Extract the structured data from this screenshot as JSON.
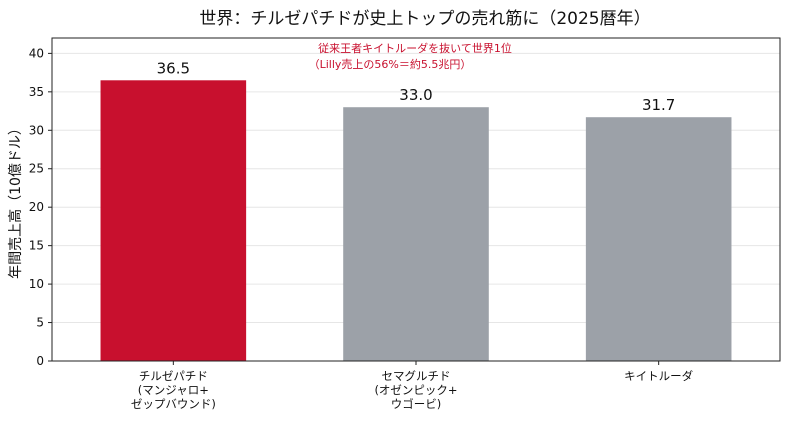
{
  "chart_data": {
    "type": "bar",
    "title": "世界：チルゼパチドが史上トップの売れ筋に（2025暦年）",
    "ylabel": "年間売上高（10億ドル）",
    "ylim": [
      0,
      42
    ],
    "yticks": [
      0,
      5,
      10,
      15,
      20,
      25,
      30,
      35,
      40
    ],
    "grid": "horizontal",
    "categories": [
      [
        "チルゼパチド",
        "(マンジャロ+",
        "ゼップバウンド)"
      ],
      [
        "セマグルチド",
        "(オゼンピック+",
        "ウゴービ)"
      ],
      [
        "キイトルーダ"
      ]
    ],
    "values": [
      36.5,
      33.0,
      31.7
    ],
    "value_labels": [
      "36.5",
      "33.0",
      "31.7"
    ],
    "colors": [
      "#c8102e",
      "#9ca1a8",
      "#9ca1a8"
    ],
    "annotation": [
      "従来王者キイトルーダを抜いて世界1位",
      "（Lilly売上の56%＝約5.5兆円）"
    ],
    "annotation_color": "#c8102e"
  }
}
